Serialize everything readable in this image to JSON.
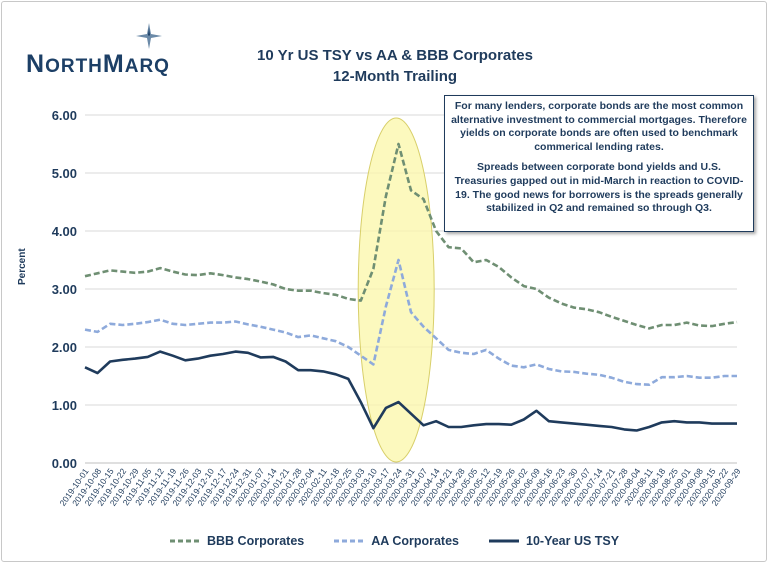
{
  "brand": {
    "name_first": "N",
    "name_rest": "ORTH",
    "name_m": "M",
    "name_rest2": "ARQ"
  },
  "chart_data": {
    "type": "line",
    "title": "10 Yr US TSY vs AA & BBB Corporates",
    "subtitle": "12-Month Trailing",
    "ylabel": "Percent",
    "xlabel": "",
    "ylim": [
      0,
      6
    ],
    "yticks": [
      "0.00",
      "1.00",
      "2.00",
      "3.00",
      "4.00",
      "5.00",
      "6.00"
    ],
    "x_ticks": [
      "2019-10-01",
      "2019-10-08",
      "2019-10-15",
      "2019-10-22",
      "2019-10-29",
      "2019-11-05",
      "2019-11-12",
      "2019-11-19",
      "2019-11-26",
      "2019-12-03",
      "2019-12-10",
      "2019-12-17",
      "2019-12-24",
      "2019-12-31",
      "2020-01-07",
      "2020-01-14",
      "2020-01-21",
      "2020-01-28",
      "2020-02-04",
      "2020-02-11",
      "2020-02-18",
      "2020-02-25",
      "2020-03-03",
      "2020-03-10",
      "2020-03-17",
      "2020-03-24",
      "2020-03-31",
      "2020-04-07",
      "2020-04-14",
      "2020-04-21",
      "2020-04-28",
      "2020-05-05",
      "2020-05-12",
      "2020-05-19",
      "2020-05-26",
      "2020-06-02",
      "2020-06-09",
      "2020-06-16",
      "2020-06-23",
      "2020-06-30",
      "2020-07-07",
      "2020-07-14",
      "2020-07-21",
      "2020-07-28",
      "2020-08-04",
      "2020-08-11",
      "2020-08-18",
      "2020-08-25",
      "2020-09-01",
      "2020-09-08",
      "2020-09-15",
      "2020-09-22",
      "2020-09-29"
    ],
    "series": [
      {
        "name": "BBB Corporates",
        "color": "#6f8f73",
        "style": "dashed",
        "values": [
          3.22,
          3.27,
          3.32,
          3.3,
          3.28,
          3.3,
          3.36,
          3.3,
          3.25,
          3.24,
          3.27,
          3.24,
          3.2,
          3.17,
          3.13,
          3.08,
          3.0,
          2.97,
          2.97,
          2.93,
          2.9,
          2.83,
          2.8,
          3.35,
          4.6,
          5.5,
          4.7,
          4.55,
          4.0,
          3.72,
          3.7,
          3.46,
          3.5,
          3.38,
          3.2,
          3.05,
          3.0,
          2.85,
          2.75,
          2.68,
          2.65,
          2.6,
          2.52,
          2.45,
          2.38,
          2.32,
          2.38,
          2.38,
          2.42,
          2.37,
          2.36,
          2.4,
          2.43
        ]
      },
      {
        "name": "AA Corporates",
        "color": "#8eaadb",
        "style": "dashed",
        "values": [
          2.3,
          2.26,
          2.4,
          2.38,
          2.4,
          2.43,
          2.47,
          2.4,
          2.38,
          2.4,
          2.42,
          2.42,
          2.44,
          2.39,
          2.35,
          2.3,
          2.25,
          2.17,
          2.2,
          2.15,
          2.1,
          2.0,
          1.85,
          1.7,
          2.7,
          3.5,
          2.6,
          2.35,
          2.15,
          1.95,
          1.9,
          1.88,
          1.95,
          1.8,
          1.68,
          1.65,
          1.7,
          1.62,
          1.58,
          1.57,
          1.54,
          1.52,
          1.47,
          1.4,
          1.36,
          1.35,
          1.48,
          1.48,
          1.5,
          1.47,
          1.47,
          1.5,
          1.5
        ]
      },
      {
        "name": "10-Year US TSY",
        "color": "#1f3b5c",
        "style": "solid",
        "values": [
          1.65,
          1.55,
          1.75,
          1.78,
          1.8,
          1.83,
          1.92,
          1.85,
          1.77,
          1.8,
          1.85,
          1.88,
          1.92,
          1.9,
          1.82,
          1.83,
          1.75,
          1.6,
          1.6,
          1.58,
          1.53,
          1.45,
          1.05,
          0.6,
          0.95,
          1.05,
          0.85,
          0.65,
          0.72,
          0.62,
          0.62,
          0.65,
          0.67,
          0.67,
          0.66,
          0.75,
          0.9,
          0.72,
          0.7,
          0.68,
          0.66,
          0.64,
          0.62,
          0.58,
          0.56,
          0.62,
          0.7,
          0.72,
          0.7,
          0.7,
          0.68,
          0.68,
          0.68
        ]
      }
    ],
    "annotation": "COVID-19 spike highlight",
    "legend_position": "bottom"
  },
  "note": {
    "paragraph1": "For many lenders, corporate bonds are the most common alternative investment to commercial mortgages. Therefore yields on corporate bonds are often used to benchmark commerical lending rates.",
    "paragraph2": "Spreads between corporate bond yields and U.S. Treasuries gapped out in mid-March in reaction to COVID-19. The good news for borrowers is the spreads generally stabilized in Q2 and remained so through Q3."
  },
  "legend": {
    "bbb": "BBB Corporates",
    "aa": "AA Corporates",
    "tsy": "10-Year US TSY"
  }
}
